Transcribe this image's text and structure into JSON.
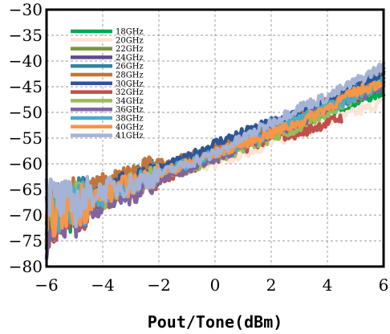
{
  "chart_data": {
    "type": "line",
    "title": "",
    "xlabel": "Pout/Tone(dBm)",
    "ylabel": "",
    "xlim": [
      -6,
      6
    ],
    "ylim": [
      -80,
      -30
    ],
    "xticks": [
      -6,
      -4,
      -2,
      0,
      2,
      4,
      6
    ],
    "yticks": [
      -30,
      -35,
      -40,
      -45,
      -50,
      -55,
      -60,
      -65,
      -70,
      -75,
      -80
    ],
    "grid": true,
    "legend_position": "top-left",
    "series": [
      {
        "name": "18GHz",
        "color": "#00a84f",
        "x": [
          -6,
          -5.6,
          -5,
          -4,
          -3,
          -2,
          -1,
          0,
          1,
          2,
          3,
          4,
          5,
          6
        ],
        "y": [
          -72,
          -70,
          -69,
          -66,
          -63,
          -61,
          -60,
          -58,
          -56,
          -54,
          -52,
          -50,
          -48,
          -46
        ]
      },
      {
        "name": "20GHz",
        "color": "#fde4d4",
        "x": [
          -6,
          -5.6,
          -5,
          -4,
          -3,
          -2,
          -1,
          0,
          1,
          2,
          3,
          4,
          5,
          6
        ],
        "y": [
          -71,
          -69,
          -68,
          -65,
          -63,
          -62,
          -61,
          -60,
          -58,
          -56,
          -54,
          -52,
          -50,
          -48
        ]
      },
      {
        "name": "22GHz",
        "color": "#77933c",
        "x": [
          -6,
          -5.6,
          -5,
          -4,
          -3,
          -2,
          -1,
          0,
          1,
          2,
          3,
          4,
          5,
          6
        ],
        "y": [
          -73,
          -70,
          -68,
          -67,
          -64,
          -62,
          -60,
          -58,
          -55,
          -53,
          -51,
          -49,
          -47,
          -45
        ]
      },
      {
        "name": "24GHz",
        "color": "#5f4b8b",
        "x": [
          -6,
          -5.6,
          -5,
          -4,
          -3,
          -2,
          -1,
          0,
          1,
          2,
          3,
          4,
          5,
          6
        ],
        "y": [
          -74,
          -71,
          -69,
          -66,
          -64,
          -62,
          -60,
          -57,
          -55,
          -53,
          -51,
          -49,
          -47,
          -44
        ]
      },
      {
        "name": "26GHz",
        "color": "#31859c",
        "x": [
          -6,
          -5.6,
          -5,
          -4,
          -3,
          -2,
          -1,
          0,
          1,
          2,
          3,
          4,
          5,
          6
        ],
        "y": [
          -70,
          -68,
          -67,
          -65,
          -63,
          -61,
          -59,
          -57,
          -55,
          -52,
          -50,
          -48,
          -45,
          -42
        ]
      },
      {
        "name": "28GHz",
        "color": "#c0763b",
        "x": [
          -6,
          -5.6,
          -5,
          -4,
          -3,
          -2,
          -1,
          0,
          1,
          2,
          3,
          4,
          5,
          6
        ],
        "y": [
          -69,
          -67,
          -66,
          -64,
          -62,
          -60,
          -59,
          -57,
          -55,
          -53,
          -51,
          -48,
          -46,
          -43
        ]
      },
      {
        "name": "30GHz",
        "color": "#2e5597",
        "x": [
          -6,
          -5.6,
          -5,
          -4,
          -3,
          -2,
          -1,
          0,
          1,
          2,
          3,
          4,
          5,
          6
        ],
        "y": [
          -72,
          -70,
          -68,
          -66,
          -63,
          -61,
          -59,
          -56,
          -54,
          -52,
          -50,
          -48,
          -45,
          -43
        ]
      },
      {
        "name": "32GHz",
        "color": "#c0504d",
        "x": [
          -6,
          -5.6,
          -5,
          -4,
          -3,
          -2,
          -1,
          0,
          1,
          2,
          3,
          4,
          4.5
        ],
        "y": [
          -73,
          -70,
          -69,
          -67,
          -65,
          -63,
          -61,
          -59,
          -57,
          -55,
          -54,
          -52,
          -51
        ]
      },
      {
        "name": "34GHz",
        "color": "#9bbb59",
        "x": [
          -6,
          -5.6,
          -5,
          -4,
          -3,
          -2,
          -1,
          0,
          1,
          2,
          3,
          4,
          5,
          6
        ],
        "y": [
          -72,
          -70,
          -68,
          -67,
          -64,
          -62,
          -61,
          -59,
          -57,
          -55,
          -53,
          -50,
          -47,
          -44
        ]
      },
      {
        "name": "36GHz",
        "color": "#8064a2",
        "x": [
          -6,
          -5.6,
          -5,
          -4,
          -3,
          -2,
          -1,
          0,
          1,
          2,
          3,
          4,
          5,
          6
        ],
        "y": [
          -74,
          -72,
          -70,
          -68,
          -66,
          -63,
          -61,
          -59,
          -57,
          -54,
          -52,
          -49,
          -47,
          -45
        ]
      },
      {
        "name": "38GHz",
        "color": "#4bacc6",
        "x": [
          -6,
          -5.6,
          -5,
          -4,
          -3,
          -2,
          -1,
          0,
          1,
          2,
          3,
          4,
          5,
          6
        ],
        "y": [
          -70,
          -69,
          -68,
          -66,
          -64,
          -62,
          -60,
          -58,
          -56,
          -54,
          -51,
          -49,
          -47,
          -44
        ]
      },
      {
        "name": "40GHz",
        "color": "#f79646",
        "x": [
          -6,
          -5.6,
          -5,
          -4,
          -3,
          -2,
          -1,
          0,
          1,
          2,
          3,
          4,
          5,
          6
        ],
        "y": [
          -71,
          -69,
          -68,
          -66,
          -64,
          -62,
          -60,
          -58,
          -56,
          -54,
          -52,
          -49,
          -46,
          -44
        ]
      },
      {
        "name": "41GHz",
        "color": "#a5b3d6",
        "x": [
          -6,
          -5.6,
          -5,
          -4,
          -3,
          -2,
          -1,
          0,
          1,
          2,
          3,
          4,
          5,
          6
        ],
        "y": [
          -66,
          -67,
          -68,
          -65,
          -64,
          -62,
          -60,
          -58,
          -55,
          -52,
          -49,
          -47,
          -44,
          -41
        ]
      }
    ]
  }
}
